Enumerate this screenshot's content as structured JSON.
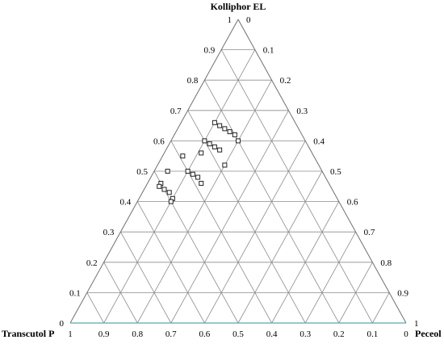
{
  "chart_data": {
    "type": "scatter",
    "plot": "ternary",
    "grid": true,
    "vertices": {
      "top": "Kolliphor EL",
      "left": "Transcutol P",
      "right": "Peceol"
    },
    "left_ticks": [
      "0",
      "0.1",
      "0.2",
      "0.3",
      "0.4",
      "0.5",
      "0.6",
      "0.7",
      "0.8",
      "0.9",
      "1"
    ],
    "right_ticks": [
      "0",
      "0.1",
      "0.2",
      "0.3",
      "0.4",
      "0.5",
      "0.6",
      "0.7",
      "0.8",
      "0.9",
      "1"
    ],
    "bottom_ticks": [
      "1",
      "0.9",
      "0.8",
      "0.7",
      "0.6",
      "0.5",
      "0.4",
      "0.3",
      "0.2",
      "0.1",
      "0"
    ],
    "points": [
      {
        "kolliphor": 0.66,
        "peceol": 0.1
      },
      {
        "kolliphor": 0.65,
        "peceol": 0.12
      },
      {
        "kolliphor": 0.64,
        "peceol": 0.14
      },
      {
        "kolliphor": 0.63,
        "peceol": 0.16
      },
      {
        "kolliphor": 0.62,
        "peceol": 0.18
      },
      {
        "kolliphor": 0.6,
        "peceol": 0.2
      },
      {
        "kolliphor": 0.6,
        "peceol": 0.1
      },
      {
        "kolliphor": 0.59,
        "peceol": 0.12
      },
      {
        "kolliphor": 0.58,
        "peceol": 0.14
      },
      {
        "kolliphor": 0.57,
        "peceol": 0.16
      },
      {
        "kolliphor": 0.56,
        "peceol": 0.11
      },
      {
        "kolliphor": 0.55,
        "peceol": 0.06
      },
      {
        "kolliphor": 0.52,
        "peceol": 0.2
      },
      {
        "kolliphor": 0.5,
        "peceol": 0.04
      },
      {
        "kolliphor": 0.5,
        "peceol": 0.1
      },
      {
        "kolliphor": 0.49,
        "peceol": 0.12
      },
      {
        "kolliphor": 0.48,
        "peceol": 0.14
      },
      {
        "kolliphor": 0.46,
        "peceol": 0.04
      },
      {
        "kolliphor": 0.46,
        "peceol": 0.16
      },
      {
        "kolliphor": 0.45,
        "peceol": 0.04
      },
      {
        "kolliphor": 0.44,
        "peceol": 0.06
      },
      {
        "kolliphor": 0.43,
        "peceol": 0.08
      },
      {
        "kolliphor": 0.41,
        "peceol": 0.1
      },
      {
        "kolliphor": 0.4,
        "peceol": 0.1
      }
    ]
  }
}
